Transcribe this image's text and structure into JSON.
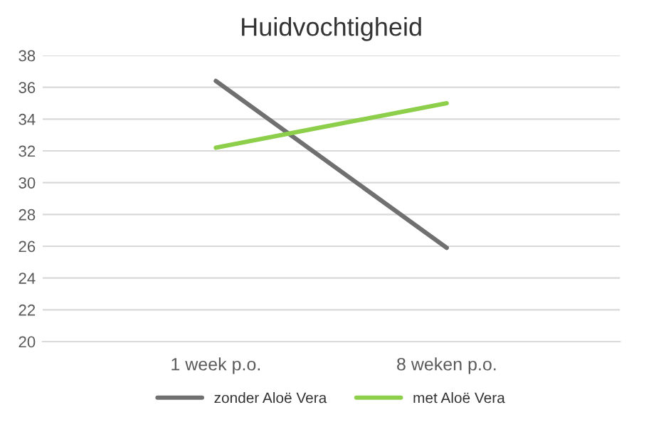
{
  "chart_data": {
    "type": "line",
    "title": "Huidvochtigheid",
    "categories": [
      "1 week p.o.",
      "8 weken p.o."
    ],
    "series": [
      {
        "name": "zonder Aloë Vera",
        "color": "#707070",
        "values": [
          36.4,
          25.9
        ]
      },
      {
        "name": "met Aloë Vera",
        "color": "#8dcf4a",
        "values": [
          32.2,
          35.0
        ]
      }
    ],
    "ylim": [
      20,
      38
    ],
    "yticks": [
      20,
      22,
      24,
      26,
      28,
      30,
      32,
      34,
      36,
      38
    ],
    "grid": "y",
    "legend": "bottom",
    "marker": "none",
    "line_style": "solid"
  }
}
